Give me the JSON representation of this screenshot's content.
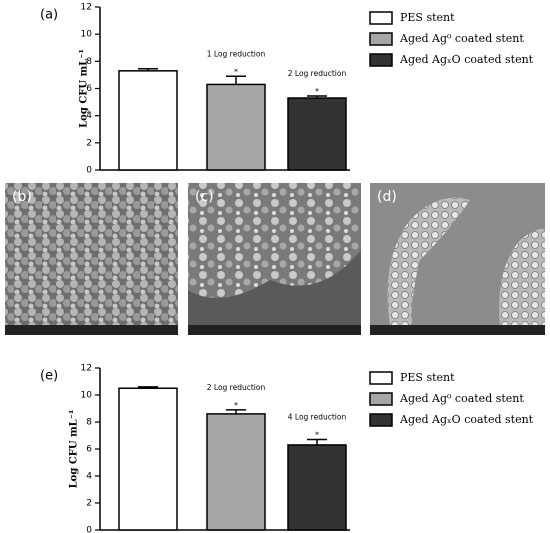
{
  "chart_data": [
    {
      "type": "bar",
      "panel_label": "(a)",
      "ylabel": "Log CFU mL⁻¹",
      "categories": [
        null
      ],
      "series": [
        {
          "name": "PES stent",
          "color": "#ffffff",
          "values": [
            7.3
          ],
          "errors": [
            0.15
          ]
        },
        {
          "name": "Aged Ag⁰ coated stent",
          "color": "#a6a6a6",
          "values": [
            6.3
          ],
          "errors": [
            0.6
          ]
        },
        {
          "name": "Aged AgₓO coated stent",
          "color": "#333333",
          "values": [
            5.3
          ],
          "errors": [
            0.15
          ]
        }
      ],
      "annotations": [
        {
          "text": "*",
          "series": 1
        },
        {
          "text": "1 Log reduction",
          "series": 1
        },
        {
          "text": "*",
          "series": 2
        },
        {
          "text": "2 Log reduction",
          "series": 2
        }
      ],
      "ylim": [
        0,
        12
      ],
      "yticks": [
        0,
        2,
        4,
        6,
        8,
        10,
        12
      ]
    },
    {
      "type": "bar",
      "panel_label": "(e)",
      "ylabel": "Log CFU mL⁻¹",
      "categories": [
        null
      ],
      "series": [
        {
          "name": "PES stent",
          "color": "#ffffff",
          "values": [
            10.5
          ],
          "errors": [
            0.1
          ]
        },
        {
          "name": "Aged Ag⁰ coated stent",
          "color": "#a6a6a6",
          "values": [
            8.6
          ],
          "errors": [
            0.3
          ]
        },
        {
          "name": "Aged AgₓO coated stent",
          "color": "#333333",
          "values": [
            6.3
          ],
          "errors": [
            0.4
          ]
        }
      ],
      "annotations": [
        {
          "text": "*",
          "series": 1
        },
        {
          "text": "2 Log reduction",
          "series": 1
        },
        {
          "text": "*",
          "series": 2
        },
        {
          "text": "4 Log reduction",
          "series": 2
        }
      ],
      "ylim": [
        0,
        12
      ],
      "yticks": [
        0,
        2,
        4,
        6,
        8,
        10,
        12
      ]
    }
  ],
  "panels": [
    {
      "label": "(b)"
    },
    {
      "label": "(c)"
    },
    {
      "label": "(d)"
    }
  ]
}
